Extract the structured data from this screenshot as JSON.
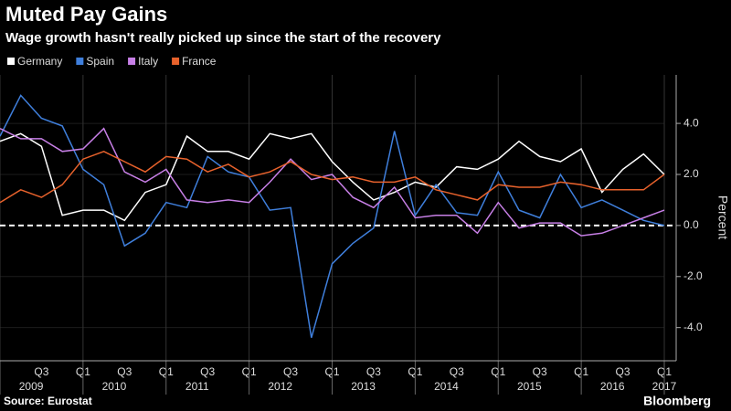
{
  "chart_data": {
    "type": "line",
    "title": "Muted Pay Gains",
    "subtitle": "Wage growth hasn't really picked up since the start of the recovery",
    "y_label": "Percent",
    "source": "Source: Eurostat",
    "brand": "Bloomberg",
    "categories": [
      null,
      null,
      "Q3",
      null,
      "Q1",
      null,
      "Q3",
      null,
      "Q1",
      null,
      "Q3",
      null,
      "Q1",
      null,
      "Q3",
      null,
      "Q1",
      null,
      "Q3",
      null,
      "Q1",
      null,
      "Q3",
      null,
      "Q1",
      null,
      "Q3",
      null,
      "Q1",
      null,
      "Q3",
      null,
      "Q1"
    ],
    "years": [
      "2009",
      "2010",
      "2011",
      "2012",
      "2013",
      "2014",
      "2015",
      "2016",
      "2017"
    ],
    "series": [
      {
        "name": "Germany",
        "color": "#ffffff",
        "values": [
          3.3,
          3.6,
          3.1,
          0.4,
          0.6,
          0.6,
          0.2,
          1.3,
          1.6,
          3.5,
          2.9,
          2.9,
          2.6,
          3.6,
          3.4,
          3.6,
          2.5,
          1.7,
          1.0,
          1.3,
          1.7,
          1.5,
          2.3,
          2.2,
          2.6,
          3.3,
          2.7,
          2.5,
          3.0,
          1.3,
          2.2,
          2.8,
          2.0
        ]
      },
      {
        "name": "Spain",
        "color": "#3f7fdc",
        "values": [
          3.5,
          5.1,
          4.2,
          3.9,
          2.2,
          1.6,
          -0.8,
          -0.3,
          0.9,
          0.7,
          2.7,
          2.1,
          1.9,
          0.6,
          0.7,
          -4.4,
          -1.5,
          -0.7,
          -0.1,
          3.7,
          0.4,
          1.6,
          0.5,
          0.4,
          2.1,
          0.6,
          0.3,
          2.0,
          0.7,
          1.0,
          0.6,
          0.2,
          0.0
        ]
      },
      {
        "name": "Italy",
        "color": "#c77fe6",
        "values": [
          3.8,
          3.4,
          3.4,
          2.9,
          3.0,
          3.8,
          2.1,
          1.7,
          2.2,
          1.0,
          0.9,
          1.0,
          0.9,
          1.7,
          2.6,
          1.8,
          2.0,
          1.1,
          0.7,
          1.5,
          0.3,
          0.4,
          0.4,
          -0.3,
          0.9,
          -0.1,
          0.1,
          0.1,
          -0.4,
          -0.3,
          0.0,
          0.3,
          0.6
        ]
      },
      {
        "name": "France",
        "color": "#e8622c",
        "values": [
          0.9,
          1.4,
          1.1,
          1.6,
          2.6,
          2.9,
          2.5,
          2.1,
          2.7,
          2.6,
          2.1,
          2.4,
          1.9,
          2.1,
          2.5,
          2.0,
          1.8,
          1.9,
          1.7,
          1.7,
          1.9,
          1.4,
          1.2,
          1.0,
          1.6,
          1.5,
          1.5,
          1.7,
          1.6,
          1.4,
          1.4,
          1.4,
          2.0
        ]
      }
    ],
    "ylim": [
      -5.3,
      5.9
    ],
    "yticks": [
      {
        "value": -4,
        "label": "-4.0"
      },
      {
        "value": -2,
        "label": "-2.0"
      },
      {
        "value": 0,
        "label": "0.0"
      },
      {
        "value": 2,
        "label": "2.0"
      },
      {
        "value": 4,
        "label": "4.0"
      }
    ],
    "zero_line": true,
    "grid": true,
    "legend": "top-left"
  }
}
